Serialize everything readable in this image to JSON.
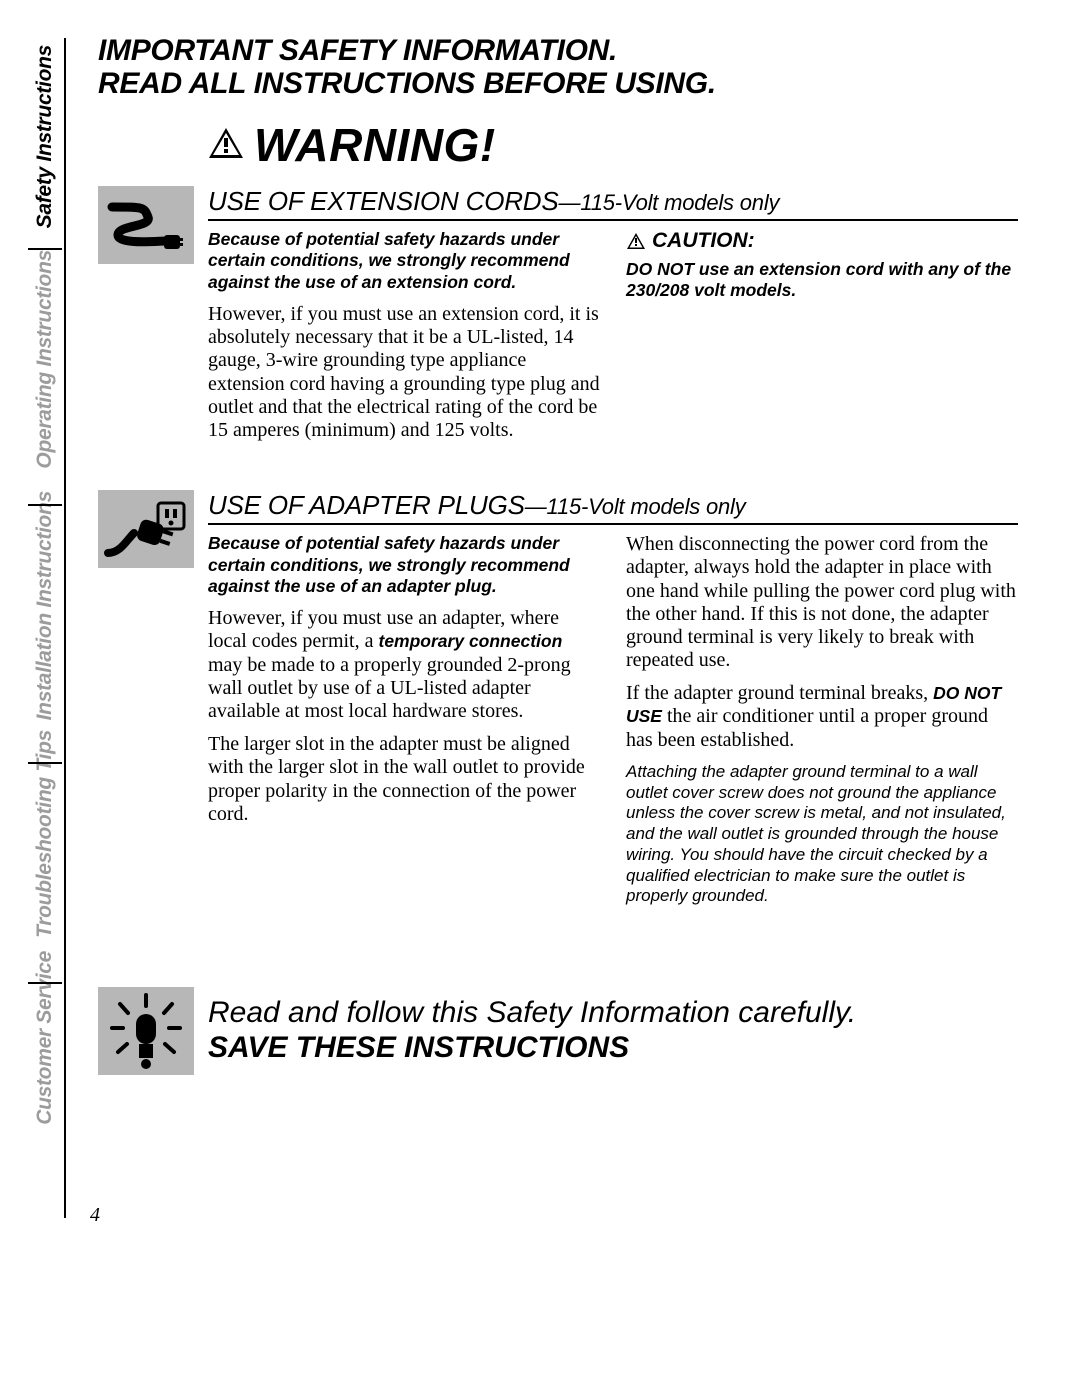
{
  "tabs": [
    {
      "label": "Safety Instructions",
      "active": true
    },
    {
      "label": "Operating Instructions",
      "active": false
    },
    {
      "label": "Installation Instructions",
      "active": false
    },
    {
      "label": "Troubleshooting Tips",
      "active": false
    },
    {
      "label": "Customer Service",
      "active": false
    }
  ],
  "tab_layout": {
    "heights": [
      198,
      246,
      248,
      208,
      200
    ],
    "sep_positions": [
      210,
      466,
      724,
      944
    ]
  },
  "heading": {
    "line1": "IMPORTANT SAFETY INFORMATION.",
    "line2": "READ ALL INSTRUCTIONS BEFORE USING."
  },
  "warning_label": "WARNING!",
  "sections": [
    {
      "title_main": "USE OF EXTENSION CORDS",
      "title_sub": "—115-Volt models only",
      "icon": "cord",
      "left": [
        {
          "style": "emph",
          "text": "Because of potential safety hazards under certain conditions, we strongly recommend against the use of an extension cord."
        },
        {
          "style": "serif",
          "text": "However, if you must use an extension cord, it is absolutely necessary that it be a UL-listed, 14 gauge, 3-wire grounding type appliance extension cord having a grounding type plug and outlet and that the electrical rating of the cord be 15 amperes (minimum) and 125 volts."
        }
      ],
      "right": [
        {
          "style": "caution_head",
          "text": "CAUTION:"
        },
        {
          "style": "emph",
          "text": "DO NOT use an extension cord with any of the 230/208 volt models."
        }
      ]
    },
    {
      "title_main": "USE OF ADAPTER PLUGS",
      "title_sub": "—115-Volt models only",
      "icon": "plug",
      "left": [
        {
          "style": "emph",
          "text": "Because of potential safety hazards under certain conditions, we strongly recommend against the use of an adapter plug."
        },
        {
          "style": "serif_inline",
          "parts": [
            {
              "t": "However, if you must use an adapter, where local codes permit, a "
            },
            {
              "t": "temporary connection",
              "bi": true
            },
            {
              "t": " may be made to a properly grounded 2-prong wall outlet by use of a UL-listed adapter available at most local hardware stores."
            }
          ]
        },
        {
          "style": "serif",
          "text": "The larger slot in the adapter must be aligned with the larger slot in the wall outlet to provide proper polarity in the connection of the power cord."
        }
      ],
      "right": [
        {
          "style": "serif",
          "text": "When disconnecting the power cord from the adapter, always hold the adapter in place with one hand while pulling the power cord plug with the other hand. If this is not done, the adapter ground terminal is very likely to break with repeated use."
        },
        {
          "style": "serif_inline",
          "parts": [
            {
              "t": "If the adapter ground terminal breaks, "
            },
            {
              "t": "DO NOT USE",
              "bi": true
            },
            {
              "t": " the air conditioner until a proper ground has been established."
            }
          ]
        },
        {
          "style": "note_italic",
          "text": "Attaching the adapter ground terminal to a wall outlet cover screw does not ground the appliance unless the cover screw is metal, and not insulated, and the wall outlet is grounded through the house wiring. You should have the circuit checked by a qualified electrician to make sure the outlet is properly grounded."
        }
      ]
    }
  ],
  "save": {
    "line1": "Read and follow this Safety Information carefully.",
    "line2": "SAVE THESE INSTRUCTIONS"
  },
  "page_number": "4",
  "colors": {
    "icon_bg": "#b7b7b7",
    "tab_inactive": "#9c9c9c"
  }
}
